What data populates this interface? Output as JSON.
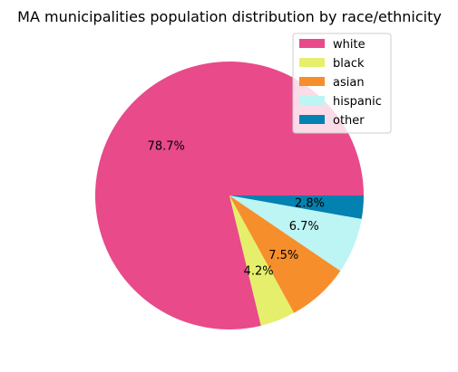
{
  "chart_data": {
    "type": "pie",
    "title": "MA municipalities population distribution by race/ethnicity",
    "slices": [
      {
        "label": "white",
        "value": 78.7,
        "display": "78.7%",
        "color": "#E84A8A"
      },
      {
        "label": "black",
        "value": 4.2,
        "display": "4.2%",
        "color": "#E5EF6B"
      },
      {
        "label": "asian",
        "value": 7.5,
        "display": "7.5%",
        "color": "#F68E2C"
      },
      {
        "label": "hispanic",
        "value": 6.7,
        "display": "6.7%",
        "color": "#BDF4F4"
      },
      {
        "label": "other",
        "value": 2.8,
        "display": "2.8%",
        "color": "#0381B0"
      }
    ],
    "start_angle_deg": 0,
    "direction": "counterclockwise",
    "legend_position": "top-right"
  }
}
